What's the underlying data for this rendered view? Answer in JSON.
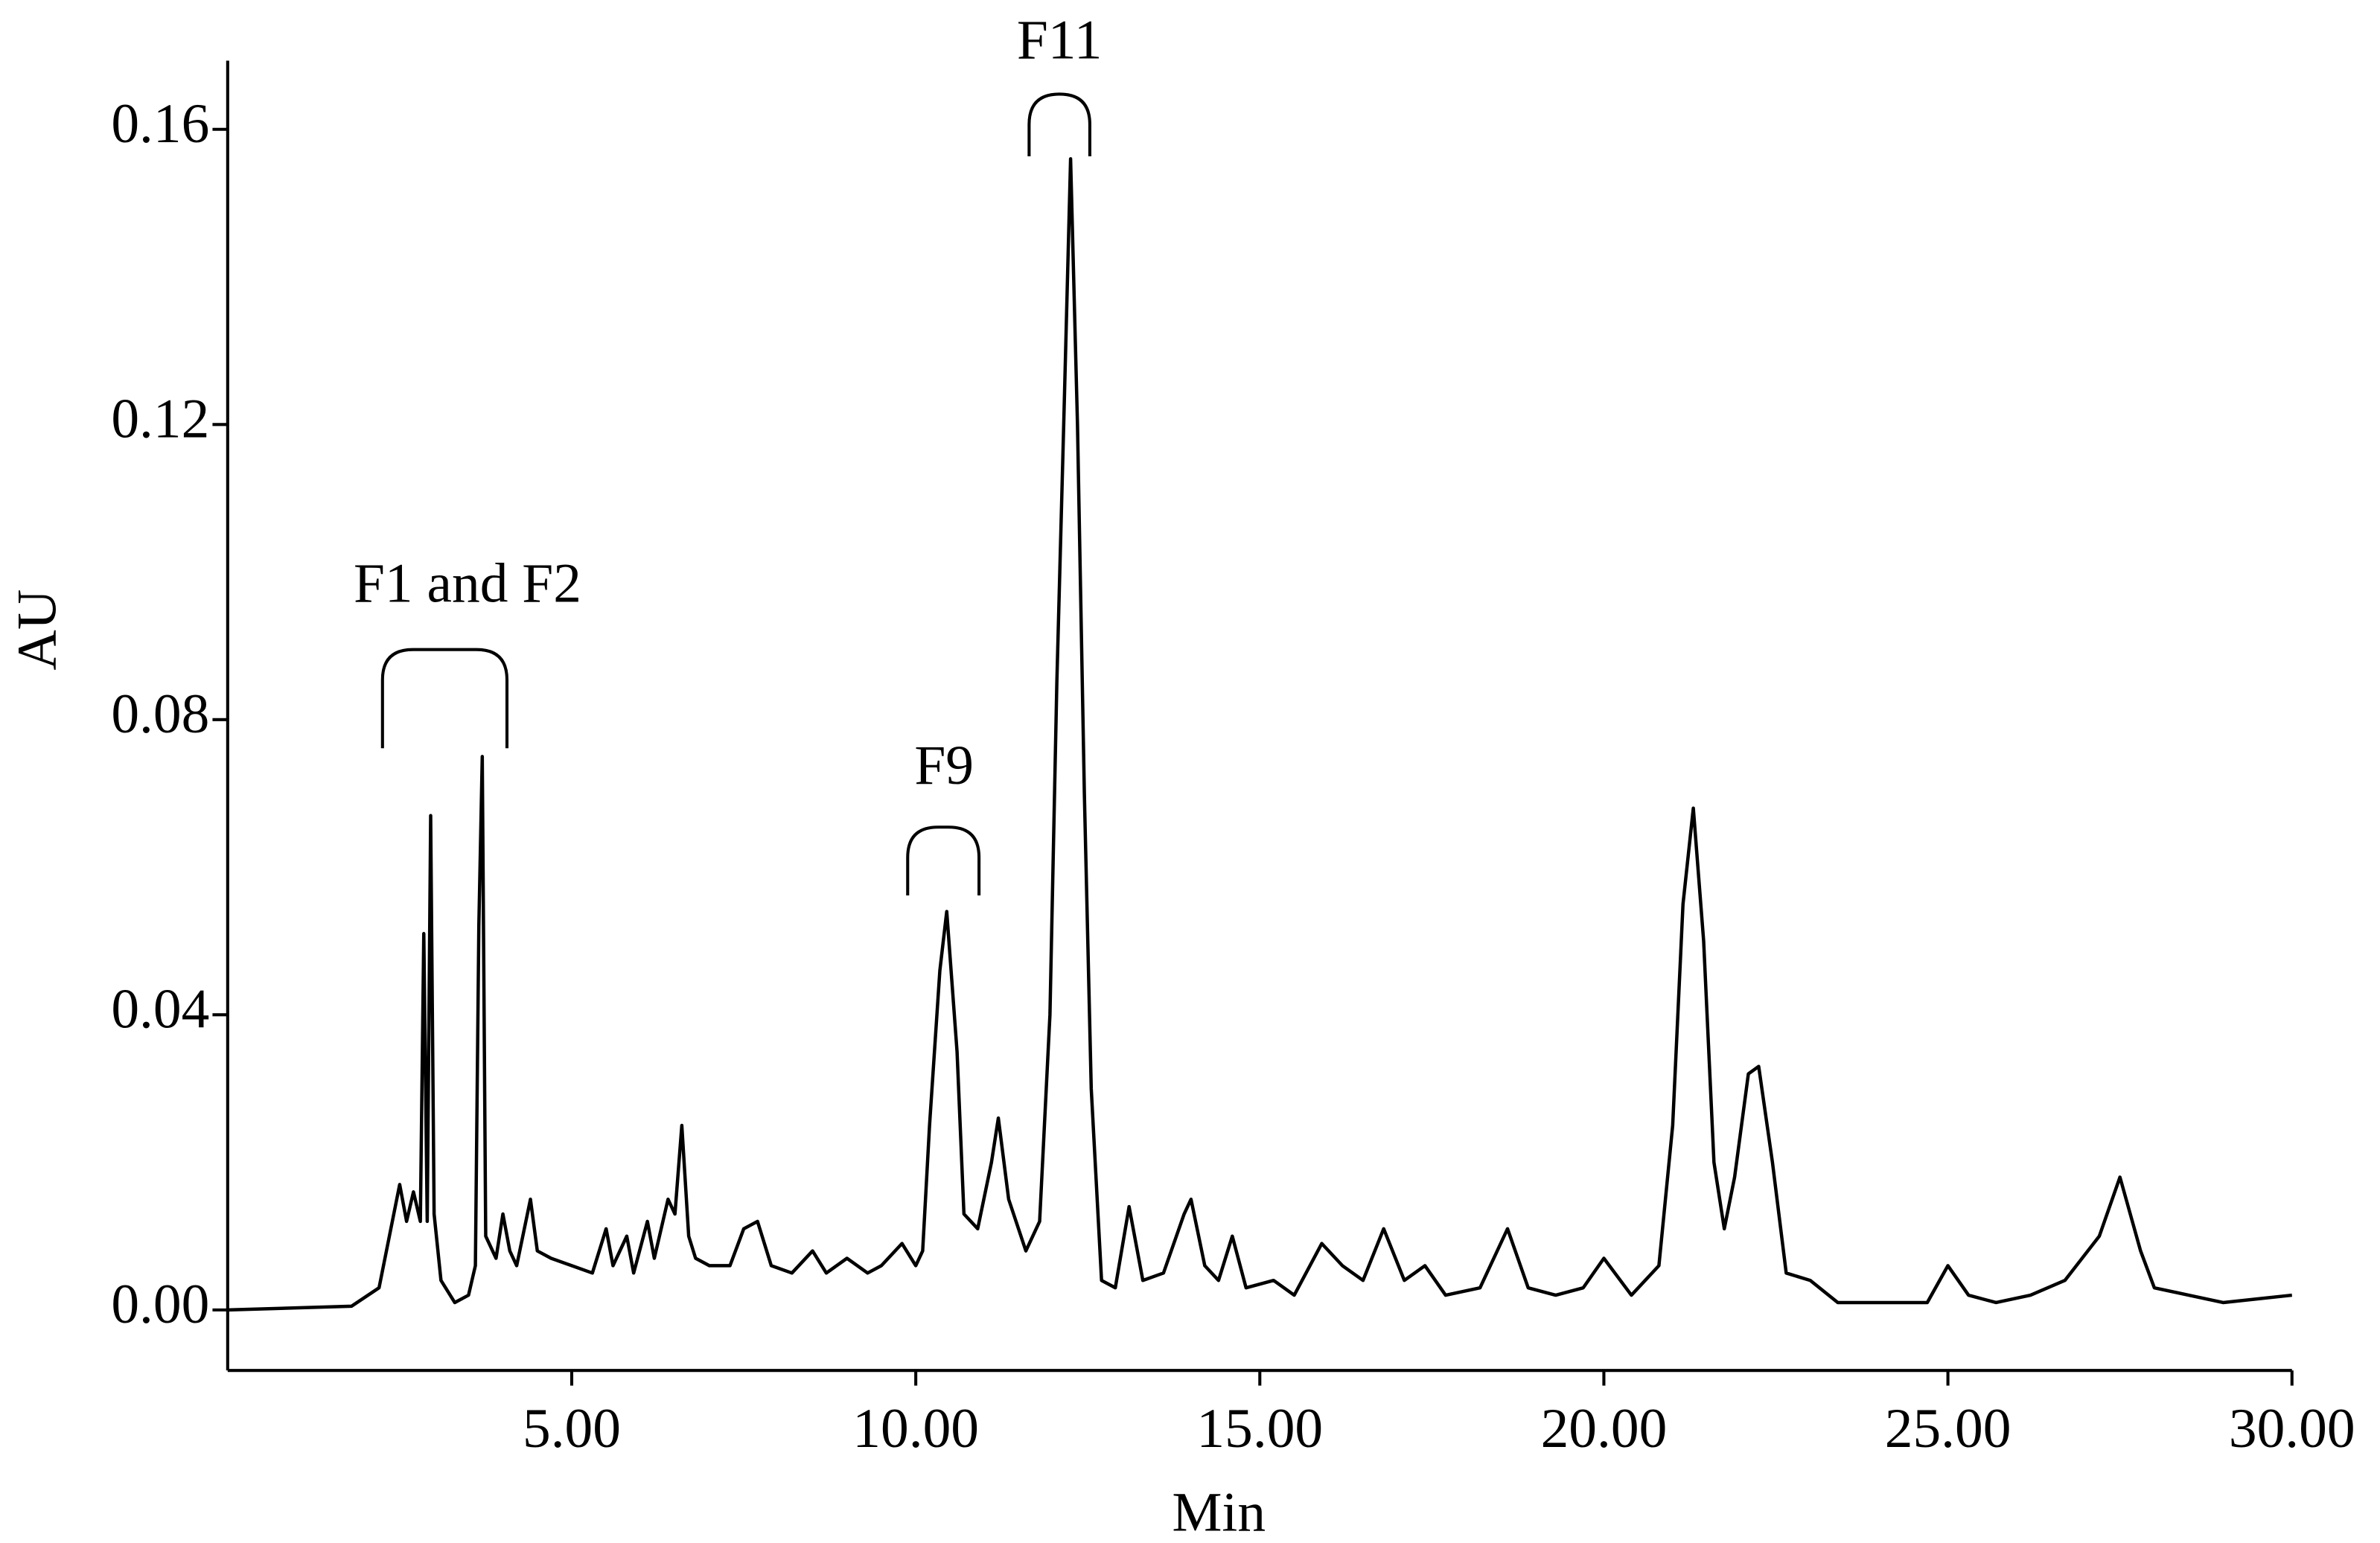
{
  "chart_data": {
    "type": "line",
    "x_label": "Min",
    "y_label": "AU",
    "annotations": [
      "F1 and F2",
      "F9",
      "F11"
    ],
    "xlim": [
      0,
      30
    ],
    "ylim": [
      -0.0082,
      0.1693
    ],
    "xticks": [
      {
        "value": 5,
        "label": "5.00"
      },
      {
        "value": 10,
        "label": "10.00"
      },
      {
        "value": 15,
        "label": "15.00"
      },
      {
        "value": 20,
        "label": "20.00"
      },
      {
        "value": 25,
        "label": "25.00"
      },
      {
        "value": 30,
        "label": "30.00"
      }
    ],
    "yticks": [
      {
        "value": 0,
        "label": "0.00"
      },
      {
        "value": 0.04,
        "label": "0.04"
      },
      {
        "value": 0.08,
        "label": "0.08"
      },
      {
        "value": 0.12,
        "label": "0.12"
      },
      {
        "value": 0.16,
        "label": "0.16"
      }
    ],
    "grid": false,
    "x": [
      0,
      1.8,
      2.2,
      2.5,
      2.6,
      2.7,
      2.8,
      2.85,
      2.9,
      2.95,
      3.0,
      3.1,
      3.3,
      3.5,
      3.6,
      3.65,
      3.7,
      3.75,
      3.9,
      4.0,
      4.1,
      4.2,
      4.4,
      4.5,
      4.7,
      5.0,
      5.3,
      5.5,
      5.6,
      5.8,
      5.9,
      6.1,
      6.2,
      6.4,
      6.5,
      6.6,
      6.7,
      6.8,
      7.0,
      7.3,
      7.5,
      7.7,
      7.9,
      8.2,
      8.5,
      8.7,
      9.0,
      9.3,
      9.5,
      9.8,
      10.0,
      10.1,
      10.2,
      10.35,
      10.45,
      10.6,
      10.7,
      10.9,
      11.1,
      11.2,
      11.35,
      11.6,
      11.8,
      11.95,
      12.05,
      12.15,
      12.25,
      12.35,
      12.45,
      12.55,
      12.7,
      12.9,
      13.1,
      13.3,
      13.6,
      13.9,
      14.0,
      14.2,
      14.4,
      14.6,
      14.8,
      15.2,
      15.5,
      15.9,
      16.2,
      16.5,
      16.8,
      17.1,
      17.4,
      17.7,
      18.2,
      18.6,
      18.9,
      19.3,
      19.7,
      20.0,
      20.4,
      20.8,
      21.0,
      21.15,
      21.3,
      21.45,
      21.6,
      21.75,
      21.9,
      22.1,
      22.25,
      22.45,
      22.65,
      23.0,
      23.4,
      24.0,
      24.7,
      25.0,
      25.3,
      25.7,
      26.2,
      26.7,
      27.2,
      27.5,
      27.8,
      28.0,
      28.5,
      29.0,
      30.0
    ],
    "series": [
      {
        "name": "AU",
        "color": "#000000",
        "values": [
          0,
          0.0005,
          0.003,
          0.017,
          0.012,
          0.016,
          0.012,
          0.051,
          0.012,
          0.067,
          0.013,
          0.004,
          0.001,
          0.002,
          0.006,
          0.052,
          0.075,
          0.01,
          0.007,
          0.013,
          0.008,
          0.006,
          0.015,
          0.008,
          0.007,
          0.006,
          0.005,
          0.011,
          0.006,
          0.01,
          0.005,
          0.012,
          0.007,
          0.015,
          0.013,
          0.025,
          0.01,
          0.007,
          0.006,
          0.006,
          0.011,
          0.012,
          0.006,
          0.005,
          0.008,
          0.005,
          0.007,
          0.005,
          0.006,
          0.009,
          0.006,
          0.008,
          0.025,
          0.046,
          0.054,
          0.035,
          0.013,
          0.011,
          0.02,
          0.026,
          0.015,
          0.008,
          0.012,
          0.04,
          0.085,
          0.12,
          0.156,
          0.12,
          0.07,
          0.03,
          0.004,
          0.003,
          0.014,
          0.004,
          0.005,
          0.013,
          0.015,
          0.006,
          0.004,
          0.01,
          0.003,
          0.004,
          0.002,
          0.009,
          0.006,
          0.004,
          0.011,
          0.004,
          0.006,
          0.002,
          0.003,
          0.011,
          0.003,
          0.002,
          0.003,
          0.007,
          0.002,
          0.006,
          0.025,
          0.055,
          0.068,
          0.05,
          0.02,
          0.011,
          0.018,
          0.032,
          0.033,
          0.02,
          0.005,
          0.004,
          0.001,
          0.001,
          0.001,
          0.006,
          0.002,
          0.001,
          0.002,
          0.004,
          0.01,
          0.018,
          0.008,
          0.003,
          0.002,
          0.001,
          0.002
        ]
      }
    ]
  }
}
